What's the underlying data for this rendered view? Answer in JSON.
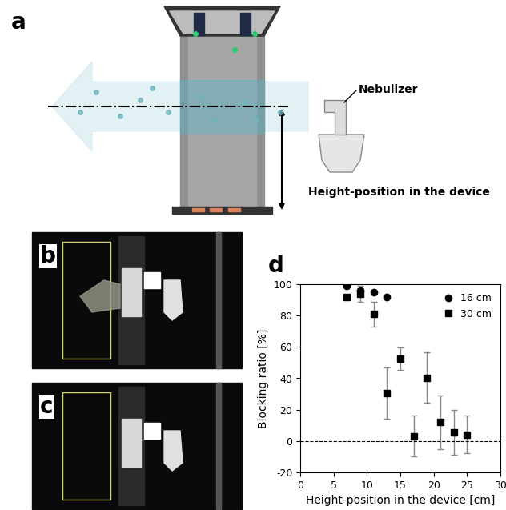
{
  "panel_labels": [
    "a",
    "b",
    "c",
    "d"
  ],
  "diagram": {
    "nebulizer_label": "Nebulizer",
    "height_label": "Height-position in the device"
  },
  "chart_data": {
    "type": "scatter",
    "x_label": "Height-position in the device [cm]",
    "y_label": "Blocking ratio [%]",
    "xlim": [
      0,
      30
    ],
    "xticks": [
      0,
      5,
      10,
      15,
      20,
      25,
      30
    ],
    "ylim": [
      -20,
      100
    ],
    "yticks": [
      -20,
      0,
      20,
      40,
      60,
      80,
      100
    ],
    "reference_line": 0,
    "legend": "upper right",
    "series": [
      {
        "name": "16 cm",
        "color": "#000000",
        "marker": "circle",
        "x": [
          7,
          9,
          11,
          13
        ],
        "values": [
          99,
          96,
          95,
          92
        ],
        "errors": [
          0.5,
          1,
          1,
          0.5
        ]
      },
      {
        "name": "30 cm",
        "color": "#000000",
        "marker": "square",
        "x": [
          7,
          9,
          11,
          13,
          15,
          17,
          19,
          21,
          23,
          25
        ],
        "values": [
          92,
          94,
          81,
          30.5,
          52.5,
          3,
          40.5,
          12,
          5.5,
          4
        ],
        "errors": [
          1,
          5,
          8,
          16.5,
          7,
          13,
          16,
          17,
          14.5,
          12
        ]
      }
    ]
  }
}
